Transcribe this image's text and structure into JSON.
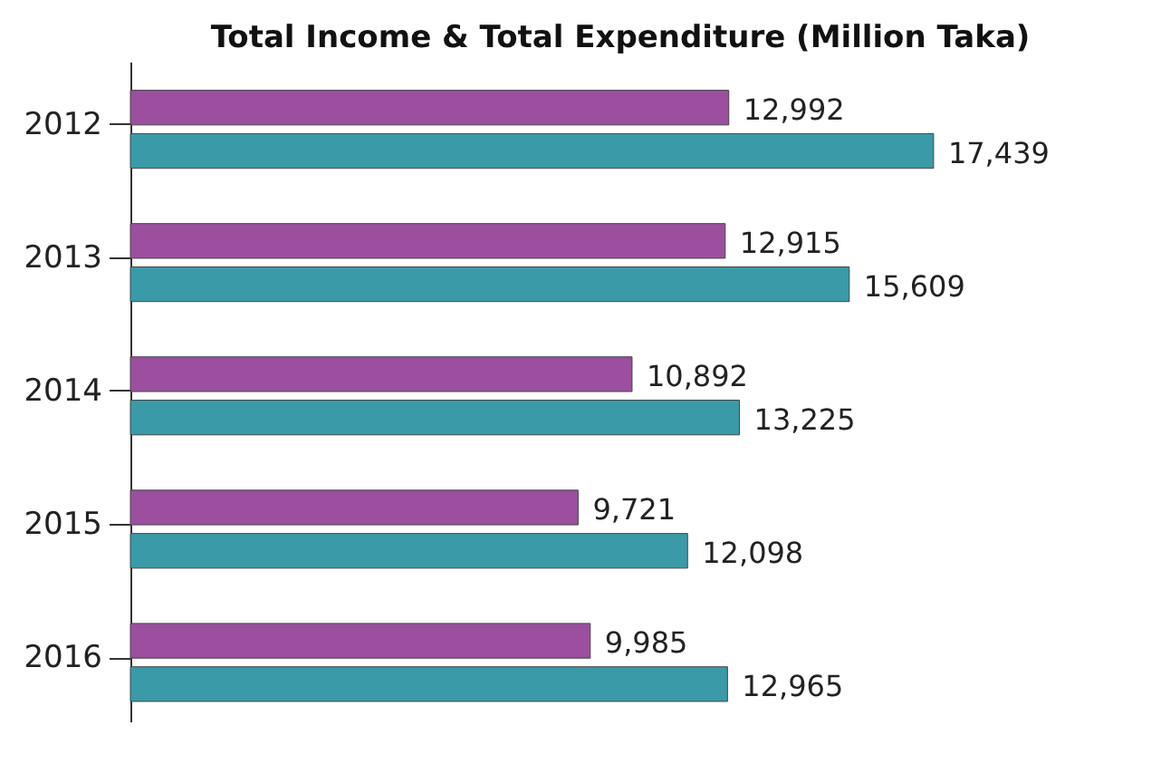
{
  "chart_data": {
    "type": "bar",
    "orientation": "horizontal",
    "title": "Total Income & Total Expenditure (Million Taka)",
    "categories": [
      "2012",
      "2013",
      "2014",
      "2015",
      "2016"
    ],
    "grid": false,
    "series": [
      {
        "color": "#9b4f9e",
        "values": [
          12992,
          12915,
          10892,
          9721,
          9985
        ],
        "value_labels": [
          "12,992",
          "12,915",
          "10,892",
          "9,721",
          "9,985"
        ]
      },
      {
        "color": "#3a9aa8",
        "values": [
          17439,
          15609,
          13225,
          12098,
          12965
        ],
        "value_labels": [
          "17,439",
          "15,609",
          "13,225",
          "12,098",
          "12,965"
        ]
      }
    ]
  }
}
